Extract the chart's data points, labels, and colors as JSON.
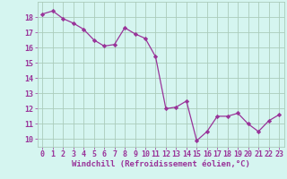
{
  "x": [
    0,
    1,
    2,
    3,
    4,
    5,
    6,
    7,
    8,
    9,
    10,
    11,
    12,
    13,
    14,
    15,
    16,
    17,
    18,
    19,
    20,
    21,
    22,
    23
  ],
  "y": [
    18.2,
    18.4,
    17.9,
    17.6,
    17.2,
    16.5,
    16.1,
    16.2,
    17.3,
    16.9,
    16.6,
    15.4,
    12.0,
    12.1,
    12.5,
    9.9,
    10.5,
    11.5,
    11.5,
    11.7,
    11.0,
    10.5,
    11.2,
    11.6
  ],
  "line_color": "#993399",
  "marker": "D",
  "marker_size": 2.2,
  "bg_color": "#d5f5f0",
  "grid_color": "#aaccbb",
  "xlabel": "Windchill (Refroidissement éolien,°C)",
  "xlabel_color": "#993399",
  "tick_color": "#993399",
  "ylim": [
    9.5,
    19.0
  ],
  "xlim": [
    -0.5,
    23.5
  ],
  "yticks": [
    10,
    11,
    12,
    13,
    14,
    15,
    16,
    17,
    18
  ],
  "xticks": [
    0,
    1,
    2,
    3,
    4,
    5,
    6,
    7,
    8,
    9,
    10,
    11,
    12,
    13,
    14,
    15,
    16,
    17,
    18,
    19,
    20,
    21,
    22,
    23
  ],
  "font_size_label": 6.5,
  "font_size_tick": 6.0,
  "linewidth": 0.9
}
